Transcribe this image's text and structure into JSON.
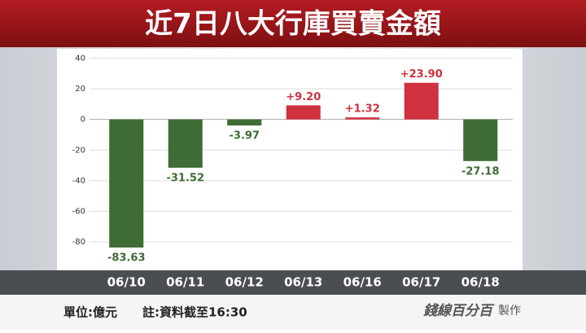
{
  "chart_data": {
    "type": "bar",
    "title": "近7日八大行庫買賣金額",
    "categories": [
      "06/10",
      "06/11",
      "06/12",
      "06/13",
      "06/16",
      "06/17",
      "06/18"
    ],
    "values": [
      -83.63,
      -31.52,
      -3.97,
      9.2,
      1.32,
      23.9,
      -27.18
    ],
    "value_labels": [
      "-83.63",
      "-31.52",
      "-3.97",
      "+9.20",
      "+1.32",
      "+23.90",
      "-27.18"
    ],
    "positive_color": "#d0313f",
    "negative_color": "#3f6b34",
    "ylim": [
      -90,
      45
    ],
    "yticks": [
      40,
      20,
      0,
      -20,
      -40,
      -60,
      -80
    ],
    "grid": true,
    "unit_note": "單位:億元",
    "time_note": "註:資料截至16:30",
    "logo": "錢線百分百",
    "logo_suffix": "製作"
  }
}
